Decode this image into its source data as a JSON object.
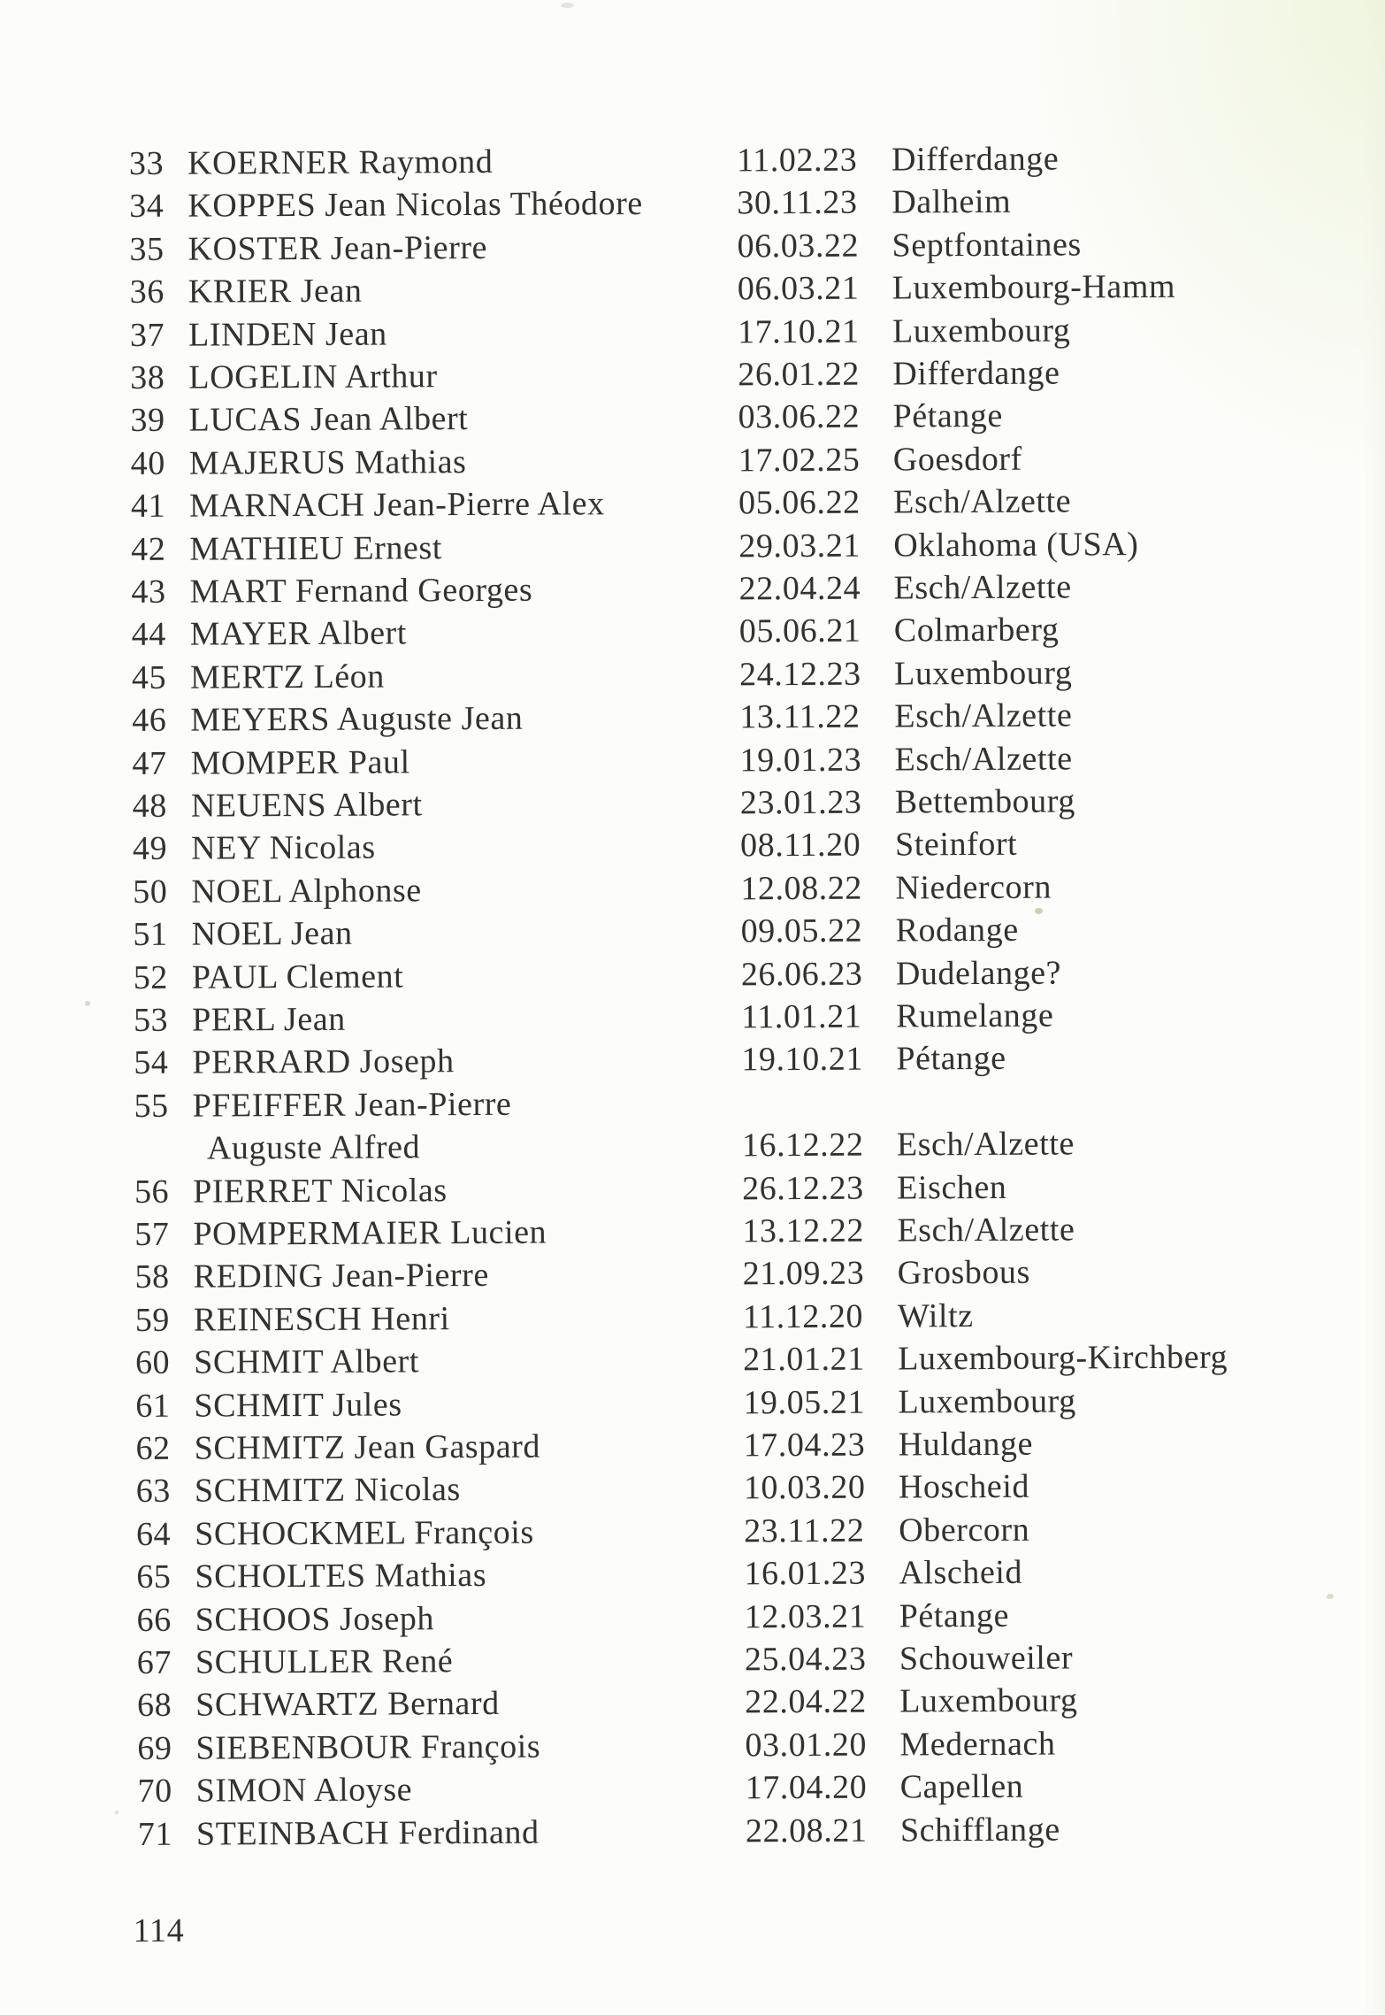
{
  "page": {
    "number": "114"
  },
  "list": {
    "rows": [
      {
        "num": "33",
        "name": "KOERNER Raymond",
        "date": "11.02.23",
        "place": "Differdange"
      },
      {
        "num": "34",
        "name": "KOPPES Jean Nicolas Théodore",
        "date": "30.11.23",
        "place": "Dalheim"
      },
      {
        "num": "35",
        "name": "KOSTER Jean-Pierre",
        "date": "06.03.22",
        "place": "Septfontaines"
      },
      {
        "num": "36",
        "name": "KRIER Jean",
        "date": "06.03.21",
        "place": "Luxembourg-Hamm"
      },
      {
        "num": "37",
        "name": "LINDEN Jean",
        "date": "17.10.21",
        "place": "Luxembourg"
      },
      {
        "num": "38",
        "name": "LOGELIN Arthur",
        "date": "26.01.22",
        "place": "Differdange"
      },
      {
        "num": "39",
        "name": "LUCAS Jean Albert",
        "date": "03.06.22",
        "place": "Pétange"
      },
      {
        "num": "40",
        "name": "MAJERUS Mathias",
        "date": "17.02.25",
        "place": "Goesdorf"
      },
      {
        "num": "41",
        "name": "MARNACH Jean-Pierre Alex",
        "date": "05.06.22",
        "place": "Esch/Alzette"
      },
      {
        "num": "42",
        "name": "MATHIEU Ernest",
        "date": "29.03.21",
        "place": "Oklahoma (USA)"
      },
      {
        "num": "43",
        "name": "MART Fernand Georges",
        "date": "22.04.24",
        "place": "Esch/Alzette"
      },
      {
        "num": "44",
        "name": "MAYER Albert",
        "date": "05.06.21",
        "place": "Colmarberg"
      },
      {
        "num": "45",
        "name": "MERTZ Léon",
        "date": "24.12.23",
        "place": "Luxembourg"
      },
      {
        "num": "46",
        "name": "MEYERS Auguste Jean",
        "date": "13.11.22",
        "place": "Esch/Alzette"
      },
      {
        "num": "47",
        "name": "MOMPER Paul",
        "date": "19.01.23",
        "place": "Esch/Alzette"
      },
      {
        "num": "48",
        "name": "NEUENS Albert",
        "date": "23.01.23",
        "place": "Bettembourg"
      },
      {
        "num": "49",
        "name": "NEY Nicolas",
        "date": "08.11.20",
        "place": "Steinfort"
      },
      {
        "num": "50",
        "name": "NOEL Alphonse",
        "date": "12.08.22",
        "place": "Niedercorn"
      },
      {
        "num": "51",
        "name": "NOEL Jean",
        "date": "09.05.22",
        "place": "Rodange"
      },
      {
        "num": "52",
        "name": "PAUL Clement",
        "date": "26.06.23",
        "place": "Dudelange?"
      },
      {
        "num": "53",
        "name": "PERL Jean",
        "date": "11.01.21",
        "place": "Rumelange"
      },
      {
        "num": "54",
        "name": "PERRARD Joseph",
        "date": "19.10.21",
        "place": "Pétange"
      },
      {
        "num": "55",
        "name": "PFEIFFER Jean-Pierre",
        "name2": "Auguste Alfred",
        "date": "16.12.22",
        "place": "Esch/Alzette"
      },
      {
        "num": "56",
        "name": "PIERRET Nicolas",
        "date": "26.12.23",
        "place": "Eischen"
      },
      {
        "num": "57",
        "name": "POMPERMAIER Lucien",
        "date": "13.12.22",
        "place": "Esch/Alzette"
      },
      {
        "num": "58",
        "name": "REDING Jean-Pierre",
        "date": "21.09.23",
        "place": "Grosbous"
      },
      {
        "num": "59",
        "name": "REINESCH Henri",
        "date": "11.12.20",
        "place": "Wiltz"
      },
      {
        "num": "60",
        "name": "SCHMIT Albert",
        "date": "21.01.21",
        "place": "Luxembourg-Kirchberg"
      },
      {
        "num": "61",
        "name": "SCHMIT Jules",
        "date": "19.05.21",
        "place": "Luxembourg"
      },
      {
        "num": "62",
        "name": "SCHMITZ Jean Gaspard",
        "date": "17.04.23",
        "place": "Huldange"
      },
      {
        "num": "63",
        "name": "SCHMITZ Nicolas",
        "date": "10.03.20",
        "place": "Hoscheid"
      },
      {
        "num": "64",
        "name": "SCHOCKMEL François",
        "date": "23.11.22",
        "place": "Obercorn"
      },
      {
        "num": "65",
        "name": "SCHOLTES Mathias",
        "date": "16.01.23",
        "place": "Alscheid"
      },
      {
        "num": "66",
        "name": "SCHOOS Joseph",
        "date": "12.03.21",
        "place": "Pétange"
      },
      {
        "num": "67",
        "name": "SCHULLER René",
        "date": "25.04.23",
        "place": "Schouweiler"
      },
      {
        "num": "68",
        "name": "SCHWARTZ Bernard",
        "date": "22.04.22",
        "place": "Luxembourg"
      },
      {
        "num": "69",
        "name": "SIEBENBOUR François",
        "date": "03.01.20",
        "place": "Medernach"
      },
      {
        "num": "70",
        "name": "SIMON Aloyse",
        "date": "17.04.20",
        "place": "Capellen"
      },
      {
        "num": "71",
        "name": "STEINBACH Ferdinand",
        "date": "22.08.21",
        "place": "Schifflange"
      }
    ]
  }
}
